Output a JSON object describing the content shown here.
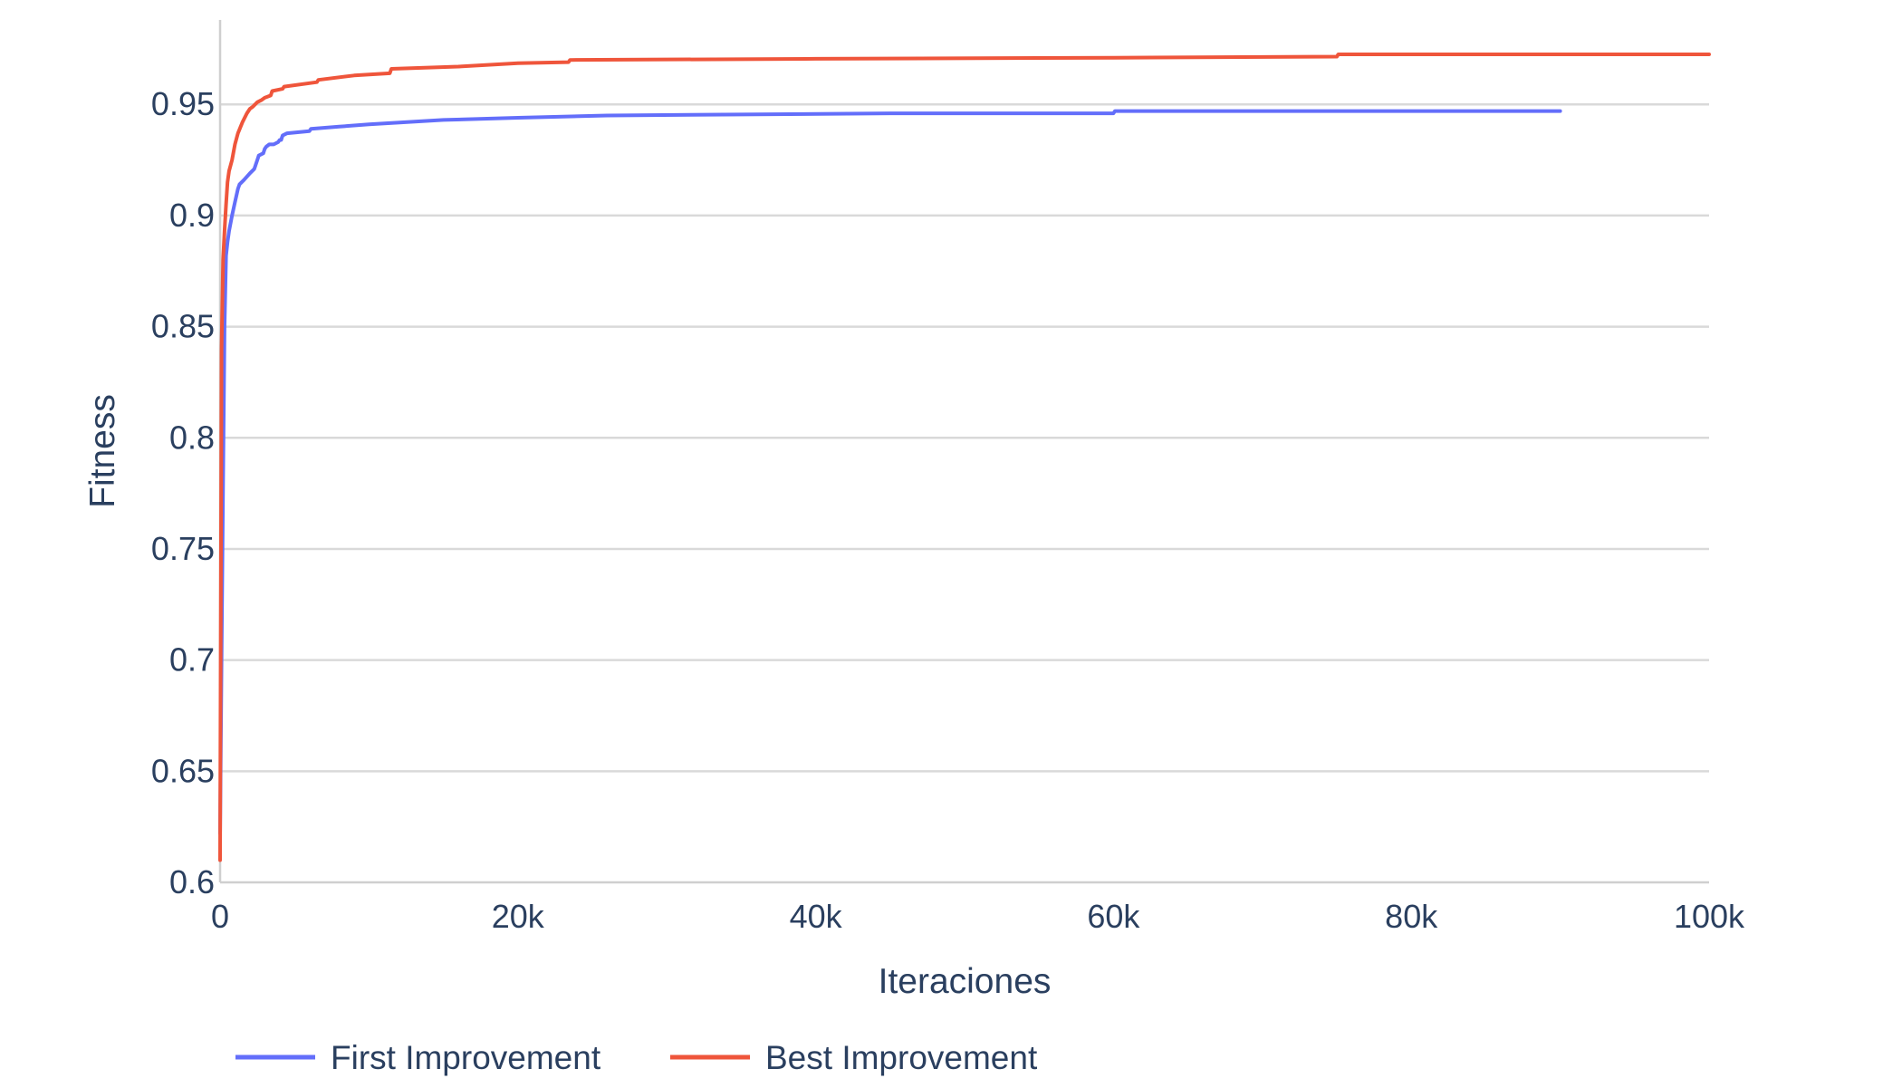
{
  "chart_data": {
    "type": "line",
    "title": "",
    "xlabel": "Iteraciones",
    "ylabel": "Fitness",
    "xlim": [
      0,
      100000
    ],
    "ylim": [
      0.6,
      0.988
    ],
    "x_ticks": [
      0,
      20000,
      40000,
      60000,
      80000,
      100000
    ],
    "x_tick_labels": [
      "0",
      "20k",
      "40k",
      "60k",
      "80k",
      "100k"
    ],
    "y_ticks": [
      0.6,
      0.65,
      0.7,
      0.75,
      0.8,
      0.85,
      0.9,
      0.95
    ],
    "y_tick_labels": [
      "0.6",
      "0.65",
      "0.7",
      "0.75",
      "0.8",
      "0.85",
      "0.9",
      "0.95"
    ],
    "grid": true,
    "legend_position": "bottom-left, horizontal",
    "series": [
      {
        "name": "First Improvement",
        "color": "#636efa",
        "x": [
          0,
          100,
          200,
          300,
          400,
          500,
          600,
          800,
          1000,
          1200,
          1300,
          1600,
          2000,
          2300,
          2500,
          2600,
          2900,
          3000,
          3100,
          3300,
          3600,
          3900,
          4000,
          4100,
          4200,
          4500,
          6000,
          6100,
          8000,
          10000,
          15000,
          20000,
          26000,
          45000,
          60000,
          60100,
          90000
        ],
        "y": [
          0.622,
          0.7,
          0.78,
          0.85,
          0.882,
          0.888,
          0.893,
          0.9,
          0.906,
          0.912,
          0.914,
          0.916,
          0.919,
          0.921,
          0.925,
          0.927,
          0.928,
          0.93,
          0.931,
          0.932,
          0.932,
          0.933,
          0.934,
          0.934,
          0.936,
          0.937,
          0.938,
          0.939,
          0.94,
          0.941,
          0.943,
          0.944,
          0.945,
          0.946,
          0.946,
          0.947,
          0.947
        ]
      },
      {
        "name": "Best Improvement",
        "color": "#ef553b",
        "x": [
          0,
          100,
          200,
          300,
          400,
          500,
          600,
          800,
          1000,
          1200,
          1500,
          1800,
          2000,
          2200,
          2500,
          2800,
          3000,
          3400,
          3500,
          4200,
          4300,
          6500,
          6600,
          9000,
          11400,
          11500,
          16000,
          20000,
          23400,
          23500,
          40000,
          60000,
          75000,
          75100,
          100000
        ],
        "y": [
          0.61,
          0.84,
          0.88,
          0.893,
          0.905,
          0.915,
          0.92,
          0.925,
          0.932,
          0.937,
          0.942,
          0.946,
          0.948,
          0.949,
          0.951,
          0.952,
          0.953,
          0.954,
          0.956,
          0.957,
          0.958,
          0.96,
          0.961,
          0.963,
          0.964,
          0.966,
          0.967,
          0.9685,
          0.969,
          0.97,
          0.9705,
          0.971,
          0.9715,
          0.9725,
          0.9725
        ]
      }
    ]
  }
}
